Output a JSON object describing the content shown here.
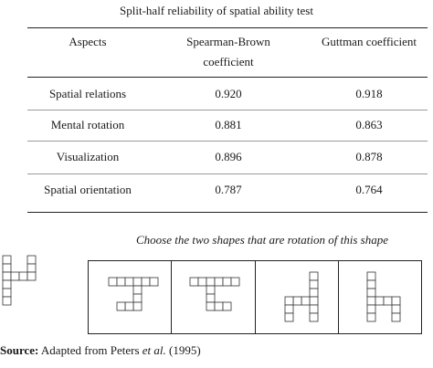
{
  "table": {
    "caption": "Split-half reliability of spatial ability test",
    "headers": {
      "aspects": "Aspects",
      "sb_line1": "Spearman-Brown",
      "sb_line2": "coefficient",
      "guttman": "Guttman coefficient"
    },
    "rows": [
      {
        "aspect": "Spatial relations",
        "spearman_brown": "0.920",
        "guttman": "0.918"
      },
      {
        "aspect": "Mental rotation",
        "spearman_brown": "0.881",
        "guttman": "0.863"
      },
      {
        "aspect": "Visualization",
        "spearman_brown": "0.896",
        "guttman": "0.878"
      },
      {
        "aspect": "Spatial orientation",
        "spearman_brown": "0.787",
        "guttman": "0.764"
      }
    ]
  },
  "figure": {
    "instruction": "Choose the two shapes that are rotation of this shape",
    "target_shape": "cube-figure",
    "option_count": 4
  },
  "source": {
    "label": "Source:",
    "text_before": "Adapted from Peters ",
    "et_al": "et al.",
    "text_after": " (1995)"
  }
}
